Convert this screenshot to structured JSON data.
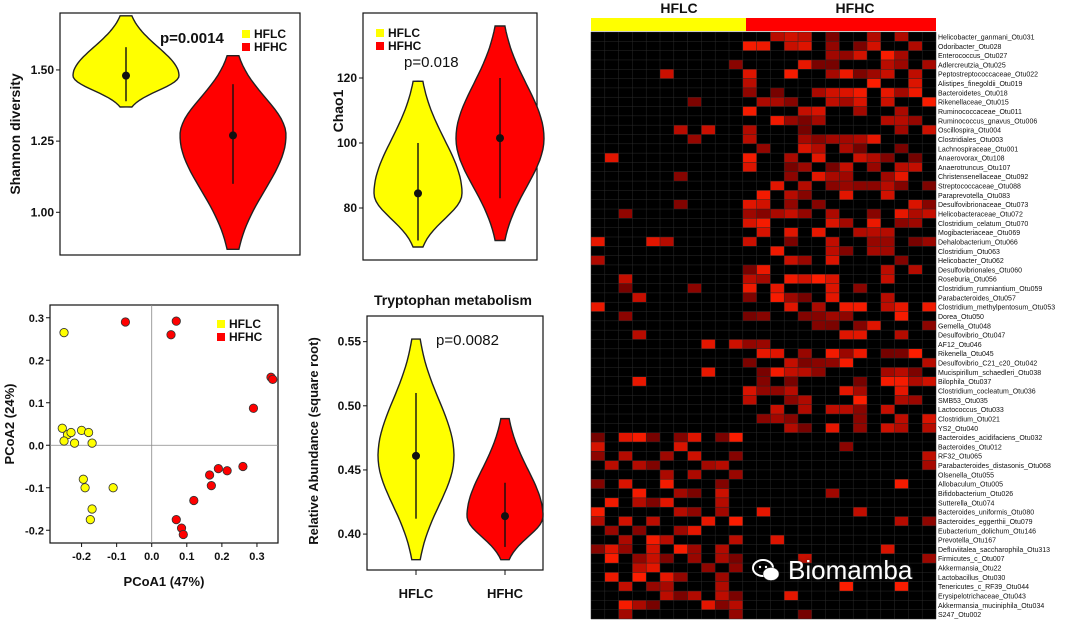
{
  "colors": {
    "hflc": "#ffff00",
    "hfhc": "#ff0000",
    "heat_bg": "#000000",
    "heat_hi": "#ff3300"
  },
  "watermark": {
    "text": "Biomamba",
    "icon": "wechat-icon"
  },
  "chart_data": [
    {
      "id": "shannon",
      "type": "violin",
      "ylabel": "Shannon diversity",
      "ylim": [
        0.85,
        1.7
      ],
      "yticks": [
        "1.00",
        "1.25",
        "1.50"
      ],
      "ytick_values": [
        1.0,
        1.25,
        1.5
      ],
      "pvalue": "p=0.0014",
      "legend": [
        "HFLC",
        "HFHC"
      ],
      "groups": [
        {
          "name": "HFLC",
          "median": 1.48,
          "q1": 1.39,
          "q3": 1.58,
          "min": 1.37,
          "max": 1.69
        },
        {
          "name": "HFHC",
          "median": 1.27,
          "q1": 1.1,
          "q3": 1.45,
          "min": 0.87,
          "max": 1.55
        }
      ]
    },
    {
      "id": "chao1",
      "type": "violin",
      "ylabel": "Chao1",
      "ylim": [
        64,
        140
      ],
      "yticks": [
        "80",
        "100",
        "120"
      ],
      "ytick_values": [
        80,
        100,
        120
      ],
      "pvalue": "p=0.018",
      "legend": [
        "HFLC",
        "HFHC"
      ],
      "groups": [
        {
          "name": "HFLC",
          "median": 84.5,
          "q1": 70,
          "q3": 100,
          "min": 68,
          "max": 119
        },
        {
          "name": "HFHC",
          "median": 101.5,
          "q1": 83,
          "q3": 120,
          "min": 70,
          "max": 136
        }
      ]
    },
    {
      "id": "pcoa",
      "type": "scatter",
      "xlabel": "PCoA1 (47%)",
      "ylabel": "PCoA2 (24%)",
      "xlim": [
        -0.29,
        0.36
      ],
      "ylim": [
        -0.23,
        0.33
      ],
      "xticks": [
        "-0.2",
        "-0.1",
        "0.0",
        "0.1",
        "0.2",
        "0.3"
      ],
      "xtick_values": [
        -0.2,
        -0.1,
        0.0,
        0.1,
        0.2,
        0.3
      ],
      "yticks": [
        "0.3",
        "0.2",
        "0.1",
        "0.0",
        "-0.1",
        "-0.2"
      ],
      "ytick_values": [
        0.3,
        0.2,
        0.1,
        0.0,
        -0.1,
        -0.2
      ],
      "legend": [
        "HFLC",
        "HFHC"
      ],
      "series": [
        {
          "name": "HFLC",
          "points": [
            [
              -0.25,
              0.265
            ],
            [
              -0.255,
              0.04
            ],
            [
              -0.24,
              0.025
            ],
            [
              -0.25,
              0.01
            ],
            [
              -0.23,
              0.03
            ],
            [
              -0.22,
              0.005
            ],
            [
              -0.2,
              0.035
            ],
            [
              -0.18,
              0.03
            ],
            [
              -0.17,
              0.005
            ],
            [
              -0.195,
              -0.08
            ],
            [
              -0.19,
              -0.1
            ],
            [
              -0.17,
              -0.15
            ],
            [
              -0.175,
              -0.175
            ],
            [
              -0.11,
              -0.1
            ]
          ]
        },
        {
          "name": "HFHC",
          "points": [
            [
              -0.075,
              0.29
            ],
            [
              0.07,
              0.292
            ],
            [
              0.055,
              0.26
            ],
            [
              0.34,
              0.16
            ],
            [
              0.345,
              0.155
            ],
            [
              0.29,
              0.087
            ],
            [
              0.26,
              -0.05
            ],
            [
              0.19,
              -0.055
            ],
            [
              0.215,
              -0.06
            ],
            [
              0.165,
              -0.07
            ],
            [
              0.17,
              -0.095
            ],
            [
              0.12,
              -0.13
            ],
            [
              0.07,
              -0.175
            ],
            [
              0.085,
              -0.195
            ],
            [
              0.09,
              -0.21
            ]
          ]
        }
      ]
    },
    {
      "id": "tryptophan",
      "type": "violin",
      "title": "Tryptophan metabolism",
      "ylabel": "Relative Abundance (square root)",
      "ylim": [
        0.372,
        0.57
      ],
      "yticks": [
        "0.55",
        "0.50",
        "0.45",
        "0.40"
      ],
      "ytick_values": [
        0.55,
        0.5,
        0.45,
        0.4
      ],
      "pvalue": "p=0.0082",
      "categories": [
        "HFLC",
        "HFHC"
      ],
      "groups": [
        {
          "name": "HFLC",
          "median": 0.461,
          "q1": 0.412,
          "q3": 0.51,
          "min": 0.38,
          "max": 0.552
        },
        {
          "name": "HFHC",
          "median": 0.414,
          "q1": 0.39,
          "q3": 0.44,
          "min": 0.38,
          "max": 0.49
        }
      ]
    },
    {
      "id": "heatmap",
      "type": "heatmap",
      "groups": [
        {
          "name": "HFLC",
          "columns": 11
        },
        {
          "name": "HFHC",
          "columns": 14
        }
      ],
      "rows": [
        "Helicobacter_ganmani_Otu031",
        "Odoribacter_Otu028",
        "Enterococcus_Otu027",
        "Adlercreutzia_Otu025",
        "Peptostreptococcaceae_Otu022",
        "Alistipes_finegoldii_Otu019",
        "Bacteroidetes_Otu018",
        "Rikenellaceae_Otu015",
        "Ruminococcaceae_Otu011",
        "Ruminococcus_gnavus_Otu006",
        "Oscillospira_Otu004",
        "Clostridiales_Otu003",
        "Lachnospiraceae_Otu001",
        "Anaerovorax_Otu108",
        "Anaerotruncus_Otu107",
        "Christensenellaceae_Otu092",
        "Streptococcaceae_Otu088",
        "Paraprevotella_Otu083",
        "Desulfovibrionaceae_Otu073",
        "Helicobacteraceae_Otu072",
        "Clostridium_celatum_Otu070",
        "Mogibacteriaceae_Otu069",
        "Dehalobacterium_Otu066",
        "Clostridium_Otu063",
        "Helicobacter_Otu062",
        "Desulfovibrionales_Otu060",
        "Roseburia_Otu056",
        "Clostridium_rumniantium_Otu059",
        "Parabacteroides_Otu057",
        "Clostridium_methylpentosum_Otu053",
        "Dorea_Otu050",
        "Gemella_Otu048",
        "Desulfovibrio_Otu047",
        "AF12_Otu046",
        "Rikenella_Otu045",
        "Desulfovibrio_C21_c20_Otu042",
        "Mucispirillum_schaedleri_Otu038",
        "Bilophila_Otu037",
        "Clostridium_cocleatum_Otu036",
        "SMB53_Otu035",
        "Lactococcus_Otu033",
        "Clostridium_Otu021",
        "YS2_Otu040",
        "Bacteroides_acidifaciens_Otu032",
        "Bacteroides_Otu012",
        "RF32_Otu065",
        "Parabacteroides_distasonis_Otu068",
        "Olsenella_Otu055",
        "Allobaculum_Otu005",
        "Bifidobacterium_Otu026",
        "Sutterella_Otu074",
        "Bacteroides_uniformis_Otu080",
        "Bacteroides_eggerthii_Otu079",
        "Eubacterium_dolichum_Otu146",
        "Prevotella_Otu167",
        "Defluviitalea_saccharophila_Otu313",
        "Firmicutes_c_Otu007",
        "Akkermansia_Otu22",
        "Lactobacillus_Otu030",
        "Tenericutes_c_RF39_Otu044",
        "Erysipelotrichaceae_Otu043",
        "Akkermansia_muciniphila_Otu034",
        "S247_Otu002"
      ],
      "row_split_index": 43
    }
  ]
}
